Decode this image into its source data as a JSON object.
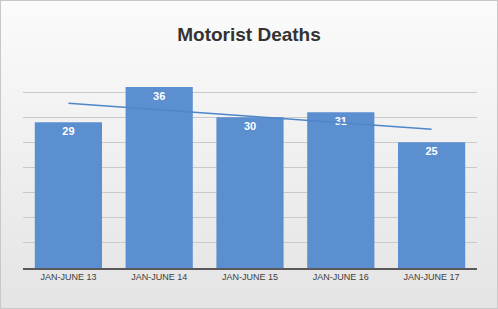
{
  "chart_data": {
    "type": "bar",
    "title": "Motorist Deaths",
    "categories": [
      "JAN-JUNE 13",
      "JAN-JUNE 14",
      "JAN-JUNE 15",
      "JAN-JUNE 16",
      "JAN-JUNE 17"
    ],
    "series": [
      {
        "values": [
          29,
          36,
          30,
          31,
          25
        ],
        "color": "#5b8fd0"
      },
      {
        "type": "line",
        "values": [
          32.8,
          31.5,
          30.2,
          28.9,
          27.6
        ],
        "color": "#4f86c9"
      }
    ],
    "ylim": [
      0,
      40
    ],
    "yticks": [
      0,
      5,
      10,
      15,
      20,
      25,
      30,
      35,
      40
    ],
    "grid": true,
    "data_labels": true,
    "tick_labels": "x"
  }
}
